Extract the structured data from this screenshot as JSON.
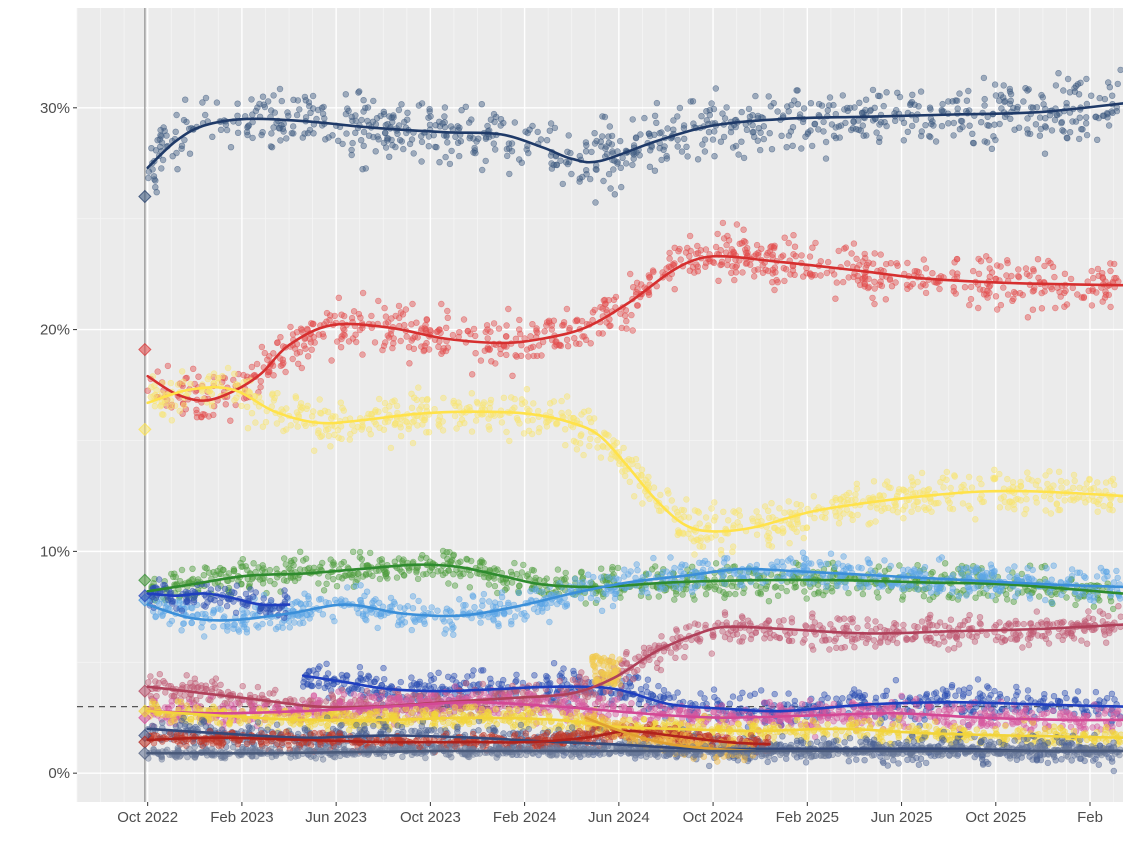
{
  "chart_data": {
    "type": "scatter",
    "title": "",
    "xlabel": "",
    "ylabel": "",
    "y_tick_labels": [
      "0%",
      "10%",
      "20%",
      "30%"
    ],
    "y_ticks": [
      0,
      10,
      20,
      30
    ],
    "ylim": [
      -1.3,
      34.5
    ],
    "x_tick_labels": [
      "Oct 2022",
      "Feb 2023",
      "Jun 2023",
      "Oct 2023",
      "Feb 2024",
      "Jun 2024",
      "Oct 2024",
      "Feb 2025",
      "Jun 2025",
      "Oct 2025",
      "Feb"
    ],
    "x_ticks": [
      2022.75,
      2023.0833,
      2023.4167,
      2023.75,
      2024.0833,
      2024.4167,
      2024.75,
      2025.0833,
      2025.4167,
      2025.75,
      2026.0833
    ],
    "xlim": [
      2022.5,
      2026.2
    ],
    "election_date": 2022.74,
    "break_date": 2024.4,
    "threshold": 3.0,
    "grid": true,
    "legend": "none",
    "series": [
      {
        "name": "navy",
        "color": "#1f3a68",
        "point_color": "#3d5a80",
        "election": 26.0,
        "spread": 1.2,
        "x": [
          2022.75,
          2022.85,
          2022.95,
          2023.1,
          2023.3,
          2023.55,
          2023.8,
          2024.0,
          2024.15,
          2024.25,
          2024.35,
          2024.55,
          2024.75,
          2025.0,
          2025.3,
          2025.6,
          2025.9,
          2026.2
        ],
        "y": [
          27.3,
          28.5,
          29.2,
          29.5,
          29.4,
          29.1,
          28.9,
          28.8,
          28.2,
          27.7,
          27.6,
          28.5,
          29.2,
          29.5,
          29.6,
          29.7,
          29.8,
          30.2
        ]
      },
      {
        "name": "red",
        "color": "#d62f2f",
        "point_color": "#e34d4d",
        "election": 19.1,
        "spread": 0.9,
        "x": [
          2022.75,
          2022.85,
          2022.95,
          2023.05,
          2023.15,
          2023.25,
          2023.4,
          2023.6,
          2023.8,
          2024.0,
          2024.15,
          2024.3,
          2024.45,
          2024.6,
          2024.7,
          2024.8,
          2024.95,
          2025.1,
          2025.3,
          2025.5,
          2025.8,
          2026.2
        ],
        "y": [
          17.9,
          17.1,
          16.8,
          17.2,
          18.0,
          19.3,
          20.2,
          20.1,
          19.6,
          19.4,
          19.6,
          20.1,
          21.2,
          22.6,
          23.2,
          23.3,
          23.1,
          22.9,
          22.6,
          22.3,
          22.1,
          22.0
        ]
      },
      {
        "name": "yellow",
        "color": "#ffe24a",
        "point_color": "#f9e56f",
        "election": 15.5,
        "spread": 0.8,
        "x": [
          2022.75,
          2022.9,
          2023.05,
          2023.2,
          2023.35,
          2023.5,
          2023.7,
          2023.9,
          2024.1,
          2024.25,
          2024.35,
          2024.45,
          2024.55,
          2024.65,
          2024.75,
          2024.9,
          2025.1,
          2025.3,
          2025.5,
          2025.7,
          2025.9,
          2026.2
        ],
        "y": [
          16.7,
          17.3,
          17.3,
          16.3,
          15.8,
          15.9,
          16.2,
          16.3,
          16.2,
          15.8,
          15.2,
          13.8,
          12.3,
          11.2,
          10.9,
          11.1,
          11.8,
          12.2,
          12.5,
          12.7,
          12.7,
          12.5
        ]
      },
      {
        "name": "green",
        "color": "#2e8b2e",
        "point_color": "#4f9e3f",
        "election": 8.7,
        "spread": 0.6,
        "x": [
          2022.75,
          2022.9,
          2023.1,
          2023.3,
          2023.5,
          2023.7,
          2023.85,
          2024.0,
          2024.15,
          2024.35,
          2024.6,
          2024.9,
          2025.2,
          2025.5,
          2025.8,
          2026.2
        ],
        "y": [
          8.2,
          8.5,
          8.9,
          9.0,
          9.2,
          9.4,
          9.3,
          8.9,
          8.5,
          8.4,
          8.6,
          8.7,
          8.7,
          8.6,
          8.5,
          8.1
        ]
      },
      {
        "name": "lightblue",
        "color": "#3b8fd9",
        "point_color": "#5ea7e6",
        "election": 7.8,
        "spread": 0.6,
        "x": [
          2022.75,
          2022.9,
          2023.05,
          2023.25,
          2023.45,
          2023.65,
          2023.85,
          2024.05,
          2024.25,
          2024.45,
          2024.65,
          2024.85,
          2025.05,
          2025.35,
          2025.65,
          2025.95,
          2026.2
        ],
        "y": [
          7.6,
          7.0,
          6.9,
          7.2,
          7.6,
          7.2,
          7.1,
          7.5,
          8.1,
          8.6,
          8.9,
          9.2,
          9.1,
          8.9,
          8.7,
          8.5,
          8.4
        ]
      },
      {
        "name": "darkblue",
        "color": "#1f3fbf",
        "point_color": "#2d4fb3",
        "election": 8.0,
        "spread": 0.5,
        "x": [
          2022.75,
          2022.85,
          2022.95,
          2023.05,
          2023.15,
          2023.25
        ],
        "y": [
          8.1,
          8.0,
          8.1,
          7.9,
          7.6,
          7.6
        ]
      },
      {
        "name": "darkblue2",
        "color": "#1f3fbf",
        "point_color": "#2d4fb3",
        "election": null,
        "spread": 0.6,
        "x": [
          2023.3,
          2023.45,
          2023.6,
          2023.8,
          2024.0,
          2024.2,
          2024.4,
          2024.6,
          2024.8,
          2025.0,
          2025.3,
          2025.6,
          2025.9,
          2026.2
        ],
        "y": [
          4.4,
          4.1,
          3.8,
          3.7,
          3.8,
          3.9,
          3.8,
          3.1,
          2.9,
          2.8,
          3.1,
          3.2,
          3.1,
          3.0
        ]
      },
      {
        "name": "rose",
        "color": "#b0405a",
        "point_color": "#c05a74",
        "election": 3.7,
        "spread": 0.6,
        "x": [
          2022.75,
          2022.95,
          2023.15,
          2023.35,
          2023.55,
          2023.8,
          2024.05,
          2024.25,
          2024.4,
          2024.55,
          2024.7,
          2024.8,
          2025.0,
          2025.3,
          2025.6,
          2025.9,
          2026.2
        ],
        "y": [
          3.9,
          3.6,
          3.3,
          3.0,
          3.0,
          3.2,
          3.4,
          3.6,
          4.3,
          5.5,
          6.3,
          6.6,
          6.5,
          6.3,
          6.4,
          6.5,
          6.7
        ]
      },
      {
        "name": "pink",
        "color": "#d44895",
        "point_color": "#d65aa0",
        "election": 2.5,
        "spread": 0.5,
        "x": [
          2022.75,
          2023.0,
          2023.3,
          2023.6,
          2023.9,
          2024.2,
          2024.4,
          2024.6,
          2024.8,
          2025.1,
          2025.4,
          2025.7,
          2026.0,
          2026.2
        ],
        "y": [
          2.8,
          2.7,
          2.8,
          3.0,
          3.2,
          3.0,
          2.8,
          2.6,
          2.5,
          2.6,
          2.7,
          2.5,
          2.4,
          2.4
        ]
      },
      {
        "name": "gold",
        "color": "#f2d43a",
        "point_color": "#f2d43a",
        "election": 2.8,
        "spread": 0.4,
        "x": [
          2022.75,
          2023.0,
          2023.3,
          2023.6,
          2023.9,
          2024.2,
          2024.4,
          2024.6,
          2024.9,
          2025.2,
          2025.5,
          2025.8,
          2026.2
        ],
        "y": [
          2.8,
          2.6,
          2.4,
          2.4,
          2.5,
          2.4,
          2.1,
          2.0,
          1.9,
          2.0,
          1.8,
          1.7,
          1.6
        ]
      },
      {
        "name": "slate",
        "color": "#35497a",
        "point_color": "#4d6394",
        "election": 1.7,
        "spread": 0.5,
        "x": [
          2022.75,
          2023.0,
          2023.3,
          2023.6,
          2023.9,
          2024.2,
          2024.4,
          2024.7,
          2025.0,
          2025.3,
          2025.6,
          2025.9,
          2026.2
        ],
        "y": [
          2.0,
          1.8,
          1.6,
          1.7,
          1.6,
          1.4,
          1.3,
          1.1,
          1.1,
          1.1,
          1.1,
          1.0,
          1.0
        ]
      },
      {
        "name": "crimson",
        "color": "#b0221c",
        "point_color": "#c0392b",
        "election": 1.4,
        "spread": 0.3,
        "x": [
          2022.75,
          2023.0,
          2023.3,
          2023.6,
          2023.9,
          2024.1,
          2024.3,
          2024.45,
          2024.6,
          2024.8,
          2024.95
        ],
        "y": [
          1.5,
          1.6,
          1.5,
          1.4,
          1.4,
          1.4,
          1.6,
          1.9,
          1.7,
          1.4,
          1.3
        ]
      },
      {
        "name": "orange",
        "color": "#e0a030",
        "point_color": "#f0b540",
        "election": null,
        "spread": 0.4,
        "x": [
          2024.3,
          2024.4,
          2024.5,
          2024.6,
          2024.75,
          2024.9
        ],
        "y": [
          2.5,
          2.0,
          1.6,
          1.3,
          1.1,
          1.0
        ]
      },
      {
        "name": "steelgray",
        "color": "#4a5a7a",
        "point_color": "#6a7a9a",
        "election": 0.9,
        "spread": 0.2,
        "x": [
          2022.75,
          2023.2,
          2023.8,
          2024.4,
          2025.0,
          2025.6,
          2026.2
        ],
        "y": [
          0.9,
          0.9,
          1.0,
          1.0,
          1.0,
          1.0,
          1.0
        ]
      }
    ],
    "extra_clusters": [
      {
        "name": "gold-cluster-jun2024",
        "color": "#f2c94c",
        "x": [
          2024.32,
          2024.42
        ],
        "y": [
          4.0,
          5.3
        ],
        "count": 70
      }
    ]
  }
}
